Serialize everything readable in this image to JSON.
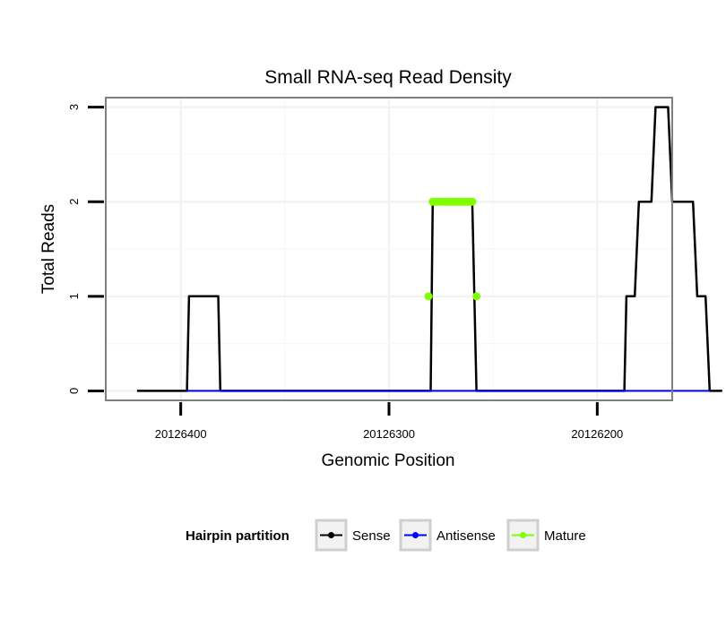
{
  "chart_data": {
    "type": "line",
    "title": "Small RNA-seq Read Density",
    "xlabel": "Genomic Position",
    "ylabel": "Total Reads",
    "x_reversed": true,
    "xlim": [
      20126436,
      20126164
    ],
    "ylim": [
      -0.1,
      3.1
    ],
    "x_ticks": [
      20126400,
      20126300,
      20126200
    ],
    "x_tick_labels": [
      "20126400",
      "20126300",
      "20126200"
    ],
    "y_ticks": [
      0,
      1,
      2,
      3
    ],
    "y_tick_labels": [
      "0",
      "1",
      "2",
      "3"
    ],
    "grid": true,
    "legend": {
      "title": "Hairpin partition",
      "position": "bottom",
      "entries": [
        {
          "name": "Sense",
          "color": "#000000"
        },
        {
          "name": "Antisense",
          "color": "#0000ff"
        },
        {
          "name": "Mature",
          "color": "#7fff00"
        }
      ]
    },
    "series": [
      {
        "name": "Sense",
        "color": "#000000",
        "points": [
          [
            20126421,
            0
          ],
          [
            20126397,
            0
          ],
          [
            20126396,
            1
          ],
          [
            20126382,
            1
          ],
          [
            20126381,
            0
          ],
          [
            20126280,
            0
          ],
          [
            20126279,
            2
          ],
          [
            20126260,
            2
          ],
          [
            20126258,
            0
          ],
          [
            20126187,
            0
          ],
          [
            20126186,
            1
          ],
          [
            20126182,
            1
          ],
          [
            20126180,
            2
          ],
          [
            20126174,
            2
          ],
          [
            20126172,
            3
          ],
          [
            20126166,
            3
          ],
          [
            20126164,
            2
          ],
          [
            20126154,
            2
          ],
          [
            20126152,
            1
          ],
          [
            20126148,
            1
          ],
          [
            20126146,
            0
          ],
          [
            20126140,
            0
          ]
        ]
      },
      {
        "name": "Antisense",
        "color": "#0000ff",
        "points": [
          [
            20126397,
            0
          ],
          [
            20126382,
            0
          ],
          [
            20126279,
            0
          ],
          [
            20126258,
            0
          ],
          [
            20126186,
            0
          ],
          [
            20126146,
            0
          ]
        ]
      },
      {
        "name": "Mature",
        "color": "#7fff00",
        "points": [
          [
            20126281,
            1
          ],
          [
            20126279,
            2
          ],
          [
            20126278,
            2
          ],
          [
            20126277,
            2
          ],
          [
            20126276,
            2
          ],
          [
            20126275,
            2
          ],
          [
            20126274,
            2
          ],
          [
            20126273,
            2
          ],
          [
            20126272,
            2
          ],
          [
            20126271,
            2
          ],
          [
            20126270,
            2
          ],
          [
            20126269,
            2
          ],
          [
            20126268,
            2
          ],
          [
            20126267,
            2
          ],
          [
            20126266,
            2
          ],
          [
            20126265,
            2
          ],
          [
            20126264,
            2
          ],
          [
            20126263,
            2
          ],
          [
            20126262,
            2
          ],
          [
            20126261,
            2
          ],
          [
            20126260,
            2
          ],
          [
            20126258,
            1
          ]
        ]
      }
    ]
  }
}
